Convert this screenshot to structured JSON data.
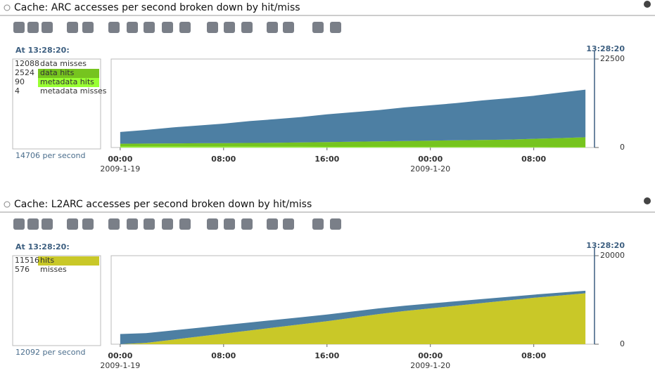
{
  "chart_data": [
    {
      "type": "area",
      "title": "Cache: ARC accesses per second broken down by hit/miss",
      "cursor_label": "At 13:28:20:",
      "cursor_time": "13:28:20",
      "total_label": "14706 per second",
      "x": [
        0,
        2,
        4,
        6,
        8,
        10,
        12,
        14,
        16,
        18,
        20,
        22,
        24,
        26,
        28,
        30,
        32,
        34,
        36
      ],
      "xlim": [
        -0.7,
        36.7
      ],
      "xticks": [
        {
          "value": 0,
          "label": "00:00"
        },
        {
          "value": 8,
          "label": "08:00"
        },
        {
          "value": 16,
          "label": "16:00"
        },
        {
          "value": 24,
          "label": "00:00"
        },
        {
          "value": 32,
          "label": "08:00"
        }
      ],
      "date_ticks": [
        {
          "value": 0,
          "label": "2009-1-19"
        },
        {
          "value": 24,
          "label": "2009-1-20"
        }
      ],
      "ylim": [
        0,
        22500
      ],
      "yticks": [
        0,
        22500
      ],
      "stack_order": [
        3,
        2,
        1,
        0
      ],
      "series": [
        {
          "name": "data misses",
          "current": 12088,
          "highlighted": false,
          "color": "#4d7fa3",
          "values": [
            3000,
            3450,
            4050,
            4500,
            4950,
            5550,
            6000,
            6450,
            7050,
            7500,
            7950,
            8550,
            9000,
            9450,
            10050,
            10500,
            10950,
            11550,
            12088
          ]
        },
        {
          "name": "data hits",
          "current": 2524,
          "highlighted": true,
          "color": "#76c41f",
          "values": [
            700,
            750,
            800,
            850,
            900,
            950,
            1000,
            1100,
            1200,
            1300,
            1400,
            1500,
            1600,
            1700,
            1800,
            1900,
            2100,
            2300,
            2524
          ]
        },
        {
          "name": "metadata hits",
          "current": 90,
          "highlighted": true,
          "color": "#99ff33",
          "values": [
            250,
            250,
            240,
            230,
            220,
            210,
            200,
            190,
            180,
            170,
            160,
            150,
            140,
            130,
            120,
            110,
            100,
            95,
            90
          ]
        },
        {
          "name": "metadata misses",
          "current": 4,
          "highlighted": false,
          "color": "#cccccc",
          "values": [
            4,
            4,
            4,
            4,
            4,
            4,
            4,
            4,
            4,
            4,
            4,
            4,
            4,
            4,
            4,
            4,
            4,
            4,
            4
          ]
        }
      ]
    },
    {
      "type": "area",
      "title": "Cache: L2ARC accesses per second broken down by hit/miss",
      "cursor_label": "At 13:28:20:",
      "cursor_time": "13:28:20",
      "total_label": "12092 per second",
      "x": [
        0,
        2,
        4,
        6,
        8,
        10,
        12,
        14,
        16,
        18,
        20,
        22,
        24,
        26,
        28,
        30,
        32,
        34,
        36
      ],
      "xlim": [
        -0.7,
        36.7
      ],
      "xticks": [
        {
          "value": 0,
          "label": "00:00"
        },
        {
          "value": 8,
          "label": "08:00"
        },
        {
          "value": 16,
          "label": "16:00"
        },
        {
          "value": 24,
          "label": "00:00"
        },
        {
          "value": 32,
          "label": "08:00"
        }
      ],
      "date_ticks": [
        {
          "value": 0,
          "label": "2009-1-19"
        },
        {
          "value": 24,
          "label": "2009-1-20"
        }
      ],
      "ylim": [
        0,
        20000
      ],
      "yticks": [
        0,
        20000
      ],
      "stack_order": [
        0,
        1
      ],
      "series": [
        {
          "name": "hits",
          "current": 11516,
          "highlighted": true,
          "color": "#c9c828",
          "values": [
            0,
            300,
            1000,
            1700,
            2400,
            3100,
            3800,
            4500,
            5200,
            6000,
            6800,
            7500,
            8100,
            8700,
            9300,
            9900,
            10500,
            11000,
            11516
          ]
        },
        {
          "name": "misses",
          "current": 576,
          "highlighted": false,
          "color": "#4d7fa3",
          "values": [
            2300,
            2200,
            2100,
            2000,
            1900,
            1800,
            1700,
            1600,
            1500,
            1400,
            1300,
            1200,
            1100,
            1000,
            900,
            800,
            700,
            650,
            576
          ]
        }
      ]
    }
  ]
}
